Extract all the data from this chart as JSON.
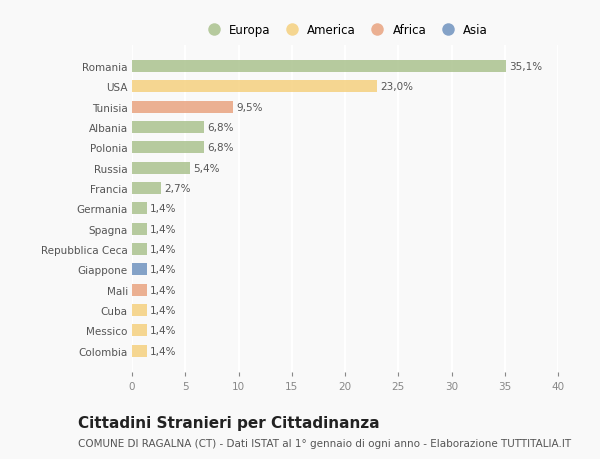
{
  "countries": [
    "Romania",
    "USA",
    "Tunisia",
    "Albania",
    "Polonia",
    "Russia",
    "Francia",
    "Germania",
    "Spagna",
    "Repubblica Ceca",
    "Giappone",
    "Mali",
    "Cuba",
    "Messico",
    "Colombia"
  ],
  "values": [
    35.1,
    23.0,
    9.5,
    6.8,
    6.8,
    5.4,
    2.7,
    1.4,
    1.4,
    1.4,
    1.4,
    1.4,
    1.4,
    1.4,
    1.4
  ],
  "labels": [
    "35,1%",
    "23,0%",
    "9,5%",
    "6,8%",
    "6,8%",
    "5,4%",
    "2,7%",
    "1,4%",
    "1,4%",
    "1,4%",
    "1,4%",
    "1,4%",
    "1,4%",
    "1,4%",
    "1,4%"
  ],
  "colors": [
    "#a8c08a",
    "#f5cf7a",
    "#e8a07c",
    "#a8c08a",
    "#a8c08a",
    "#a8c08a",
    "#a8c08a",
    "#a8c08a",
    "#a8c08a",
    "#a8c08a",
    "#6b8fbd",
    "#e8a07c",
    "#f5cf7a",
    "#f5cf7a",
    "#f5cf7a"
  ],
  "legend_labels": [
    "Europa",
    "America",
    "Africa",
    "Asia"
  ],
  "legend_colors": [
    "#a8c08a",
    "#f5cf7a",
    "#e8a07c",
    "#6b8fbd"
  ],
  "title": "Cittadini Stranieri per Cittadinanza",
  "subtitle": "COMUNE DI RAGALNA (CT) - Dati ISTAT al 1° gennaio di ogni anno - Elaborazione TUTTITALIA.IT",
  "xlim": [
    0,
    40
  ],
  "xticks": [
    0,
    5,
    10,
    15,
    20,
    25,
    30,
    35,
    40
  ],
  "background_color": "#f9f9f9",
  "bar_height": 0.6,
  "grid_color": "#ffffff",
  "title_fontsize": 11,
  "subtitle_fontsize": 7.5,
  "label_fontsize": 7.5,
  "tick_fontsize": 7.5,
  "legend_fontsize": 8.5
}
